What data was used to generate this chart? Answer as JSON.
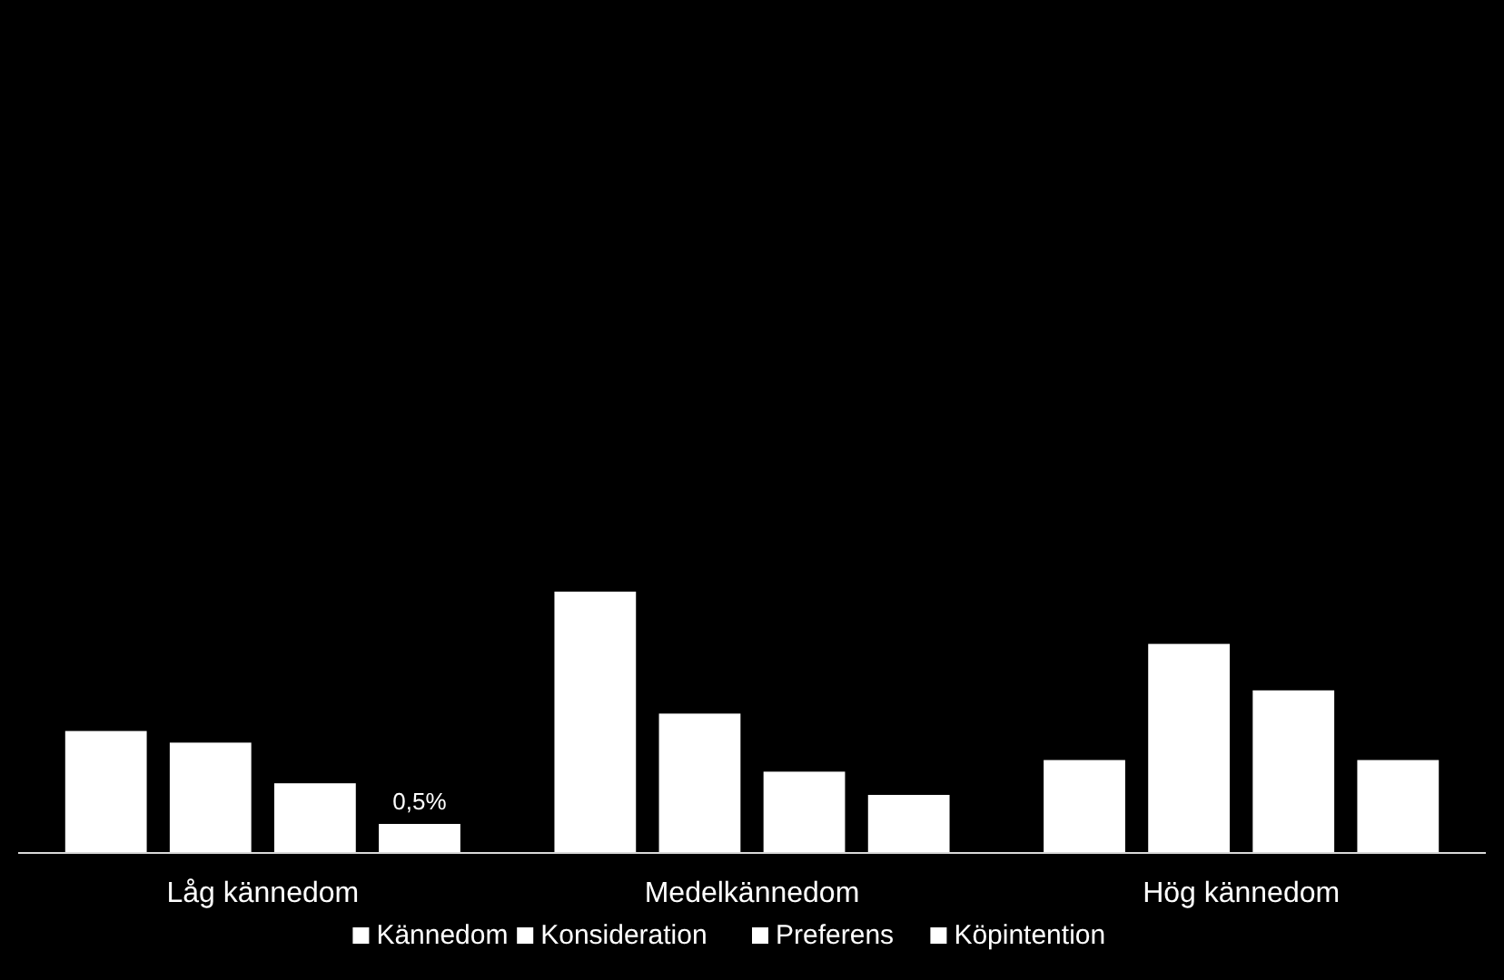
{
  "chart_data": {
    "type": "bar",
    "categories": [
      "Låg kännedom",
      "Medelkännedom",
      "Hög kännedom"
    ],
    "series": [
      {
        "name": "Kännedom",
        "color": "#ffffff",
        "values": [
          2.1,
          4.5,
          1.6
        ]
      },
      {
        "name": "Konsideration",
        "color": "#ffffff",
        "values": [
          1.9,
          2.4,
          3.6
        ]
      },
      {
        "name": "Preferens",
        "color": "#ffffff",
        "values": [
          1.2,
          1.4,
          2.8
        ]
      },
      {
        "name": "Köpintention",
        "color": "#ffffff",
        "values": [
          0.5,
          1.0,
          1.6
        ],
        "value_labels": [
          "0,5%",
          null,
          null
        ]
      }
    ],
    "ylim": [
      0,
      4.5
    ],
    "tick_labels": "x",
    "legend": "bottom"
  }
}
